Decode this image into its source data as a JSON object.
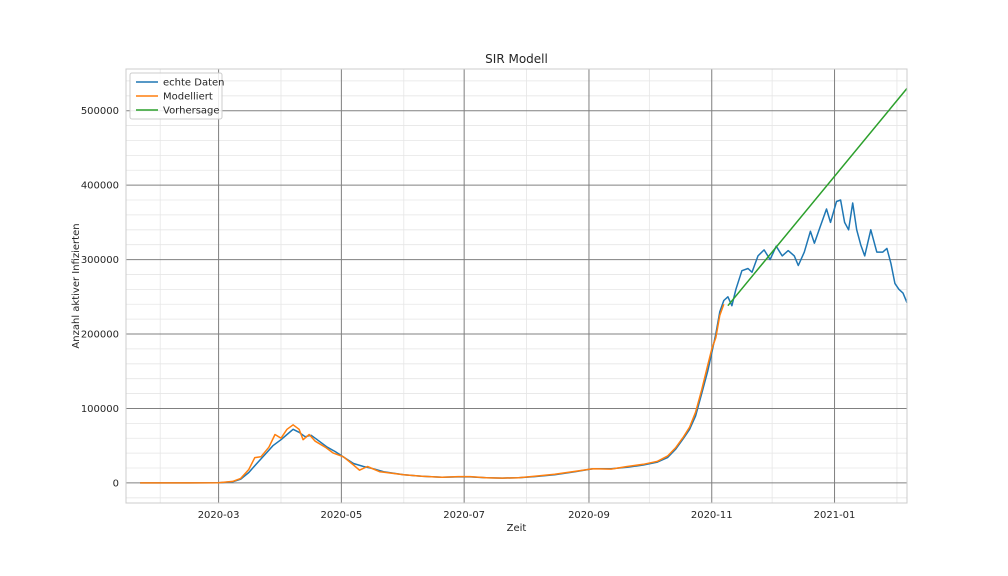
{
  "chart_data": {
    "type": "line",
    "title": "SIR Modell",
    "xlabel": "Zeit",
    "ylabel": "Anzahl aktiver Infizierten",
    "x_type": "date",
    "xlim": [
      "2020-01-15",
      "2021-02-06"
    ],
    "ylim": [
      -27000,
      556000
    ],
    "x_ticks": [
      "2020-03",
      "2020-05",
      "2020-07",
      "2020-09",
      "2020-11",
      "2021-01"
    ],
    "y_ticks": [
      0,
      100000,
      200000,
      300000,
      400000,
      500000
    ],
    "y_tick_labels": [
      "0",
      "100000",
      "200000",
      "300000",
      "400000",
      "500000"
    ],
    "grid": true,
    "legend_position": "top-left",
    "series": [
      {
        "name": "echte Daten",
        "color": "#1f77b4",
        "points": [
          [
            "2020-01-22",
            0
          ],
          [
            "2020-02-15",
            0
          ],
          [
            "2020-03-01",
            200
          ],
          [
            "2020-03-08",
            1500
          ],
          [
            "2020-03-12",
            5000
          ],
          [
            "2020-03-16",
            14000
          ],
          [
            "2020-03-20",
            26000
          ],
          [
            "2020-03-24",
            38000
          ],
          [
            "2020-03-28",
            50000
          ],
          [
            "2020-04-01",
            58000
          ],
          [
            "2020-04-04",
            65000
          ],
          [
            "2020-04-07",
            72000
          ],
          [
            "2020-04-10",
            68000
          ],
          [
            "2020-04-13",
            62000
          ],
          [
            "2020-04-16",
            64000
          ],
          [
            "2020-04-19",
            58000
          ],
          [
            "2020-04-24",
            48000
          ],
          [
            "2020-04-28",
            42000
          ],
          [
            "2020-05-03",
            33000
          ],
          [
            "2020-05-07",
            26000
          ],
          [
            "2020-05-12",
            22000
          ],
          [
            "2020-05-17",
            19000
          ],
          [
            "2020-05-22",
            15000
          ],
          [
            "2020-06-01",
            11000
          ],
          [
            "2020-06-10",
            9000
          ],
          [
            "2020-06-20",
            7500
          ],
          [
            "2020-06-28",
            8000
          ],
          [
            "2020-07-04",
            8000
          ],
          [
            "2020-07-12",
            7000
          ],
          [
            "2020-07-20",
            6500
          ],
          [
            "2020-07-28",
            7000
          ],
          [
            "2020-08-05",
            8500
          ],
          [
            "2020-08-15",
            11000
          ],
          [
            "2020-08-25",
            15000
          ],
          [
            "2020-09-03",
            19000
          ],
          [
            "2020-09-12",
            19000
          ],
          [
            "2020-09-20",
            21000
          ],
          [
            "2020-09-28",
            24000
          ],
          [
            "2020-10-05",
            28000
          ],
          [
            "2020-10-10",
            34000
          ],
          [
            "2020-10-14",
            45000
          ],
          [
            "2020-10-18",
            60000
          ],
          [
            "2020-10-21",
            72000
          ],
          [
            "2020-10-24",
            90000
          ],
          [
            "2020-10-27",
            120000
          ],
          [
            "2020-10-30",
            150000
          ],
          [
            "2020-11-01",
            175000
          ],
          [
            "2020-11-03",
            200000
          ],
          [
            "2020-11-05",
            230000
          ],
          [
            "2020-11-07",
            245000
          ],
          [
            "2020-11-09",
            250000
          ],
          [
            "2020-11-11",
            238000
          ],
          [
            "2020-11-13",
            260000
          ],
          [
            "2020-11-16",
            285000
          ],
          [
            "2020-11-19",
            288000
          ],
          [
            "2020-11-21",
            283000
          ],
          [
            "2020-11-24",
            305000
          ],
          [
            "2020-11-27",
            313000
          ],
          [
            "2020-11-30",
            300000
          ],
          [
            "2020-12-03",
            318000
          ],
          [
            "2020-12-06",
            305000
          ],
          [
            "2020-12-09",
            312000
          ],
          [
            "2020-12-12",
            305000
          ],
          [
            "2020-12-14",
            292000
          ],
          [
            "2020-12-17",
            310000
          ],
          [
            "2020-12-20",
            338000
          ],
          [
            "2020-12-22",
            322000
          ],
          [
            "2020-12-25",
            345000
          ],
          [
            "2020-12-28",
            368000
          ],
          [
            "2020-12-30",
            350000
          ],
          [
            "2021-01-02",
            378000
          ],
          [
            "2021-01-04",
            380000
          ],
          [
            "2021-01-06",
            350000
          ],
          [
            "2021-01-08",
            340000
          ],
          [
            "2021-01-10",
            376000
          ],
          [
            "2021-01-12",
            340000
          ],
          [
            "2021-01-14",
            320000
          ],
          [
            "2021-01-16",
            305000
          ],
          [
            "2021-01-19",
            340000
          ],
          [
            "2021-01-22",
            310000
          ],
          [
            "2021-01-25",
            310000
          ],
          [
            "2021-01-27",
            315000
          ],
          [
            "2021-01-29",
            295000
          ],
          [
            "2021-01-31",
            268000
          ],
          [
            "2021-02-02",
            260000
          ],
          [
            "2021-02-04",
            255000
          ],
          [
            "2021-02-06",
            242000
          ]
        ]
      },
      {
        "name": "Modelliert",
        "color": "#ff7f0e",
        "points": [
          [
            "2020-01-22",
            0
          ],
          [
            "2020-02-15",
            0
          ],
          [
            "2020-03-01",
            300
          ],
          [
            "2020-03-08",
            2000
          ],
          [
            "2020-03-12",
            6000
          ],
          [
            "2020-03-16",
            18000
          ],
          [
            "2020-03-19",
            34000
          ],
          [
            "2020-03-22",
            35000
          ],
          [
            "2020-03-26",
            48000
          ],
          [
            "2020-03-29",
            65000
          ],
          [
            "2020-04-01",
            60000
          ],
          [
            "2020-04-04",
            72000
          ],
          [
            "2020-04-07",
            78000
          ],
          [
            "2020-04-10",
            72000
          ],
          [
            "2020-04-12",
            58000
          ],
          [
            "2020-04-15",
            65000
          ],
          [
            "2020-04-18",
            56000
          ],
          [
            "2020-04-23",
            48000
          ],
          [
            "2020-04-27",
            40000
          ],
          [
            "2020-05-02",
            35000
          ],
          [
            "2020-05-07",
            24000
          ],
          [
            "2020-05-10",
            17000
          ],
          [
            "2020-05-14",
            22000
          ],
          [
            "2020-05-20",
            15000
          ],
          [
            "2020-06-01",
            11000
          ],
          [
            "2020-06-10",
            9000
          ],
          [
            "2020-06-20",
            7500
          ],
          [
            "2020-06-28",
            8500
          ],
          [
            "2020-07-04",
            8500
          ],
          [
            "2020-07-12",
            7000
          ],
          [
            "2020-07-20",
            6500
          ],
          [
            "2020-07-28",
            7000
          ],
          [
            "2020-08-05",
            9000
          ],
          [
            "2020-08-15",
            11500
          ],
          [
            "2020-08-25",
            15500
          ],
          [
            "2020-09-03",
            19000
          ],
          [
            "2020-09-12",
            18500
          ],
          [
            "2020-09-20",
            22000
          ],
          [
            "2020-09-28",
            25000
          ],
          [
            "2020-10-05",
            29000
          ],
          [
            "2020-10-10",
            36000
          ],
          [
            "2020-10-14",
            47000
          ],
          [
            "2020-10-18",
            62000
          ],
          [
            "2020-10-21",
            75000
          ],
          [
            "2020-10-24",
            95000
          ],
          [
            "2020-10-27",
            125000
          ],
          [
            "2020-10-30",
            158000
          ],
          [
            "2020-11-01",
            180000
          ],
          [
            "2020-11-03",
            195000
          ],
          [
            "2020-11-05",
            225000
          ],
          [
            "2020-11-07",
            240000
          ]
        ]
      },
      {
        "name": "Vorhersage",
        "color": "#2ca02c",
        "points": [
          [
            "2020-11-09",
            238000
          ],
          [
            "2021-02-06",
            530000
          ]
        ]
      }
    ]
  }
}
